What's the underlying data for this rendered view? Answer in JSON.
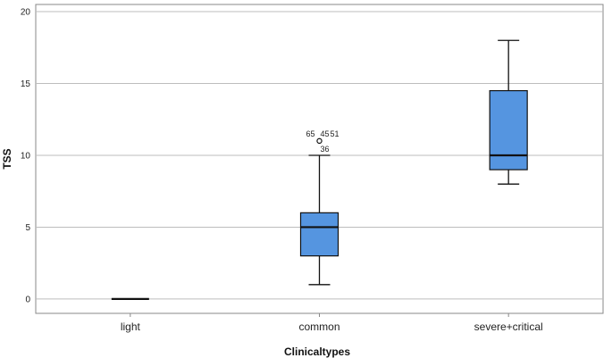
{
  "chart_data": {
    "type": "boxplot",
    "xlabel": "Clinicaltypes",
    "ylabel": "TSS",
    "ylim": [
      -1,
      20.5
    ],
    "yticks": [
      0,
      5,
      10,
      15,
      20
    ],
    "grid": true,
    "colors": {
      "box_fill": "#5595e0",
      "stroke": "#111111",
      "grid": "#bdbdbd",
      "frame": "#888888"
    },
    "categories": [
      "light",
      "common",
      "severe+critical"
    ],
    "boxes": [
      {
        "category": "light",
        "whisker_low": 0,
        "q1": 0,
        "median": 0,
        "q3": 0,
        "whisker_high": 0,
        "outliers": []
      },
      {
        "category": "common",
        "whisker_low": 1,
        "q1": 3,
        "median": 5,
        "q3": 6,
        "whisker_high": 10,
        "outliers": [
          {
            "value": 11,
            "labels": [
              "65",
              "45",
              "51",
              "36"
            ]
          }
        ]
      },
      {
        "category": "severe+critical",
        "whisker_low": 8,
        "q1": 9,
        "median": 10,
        "q3": 14.5,
        "whisker_high": 18,
        "outliers": []
      }
    ]
  }
}
